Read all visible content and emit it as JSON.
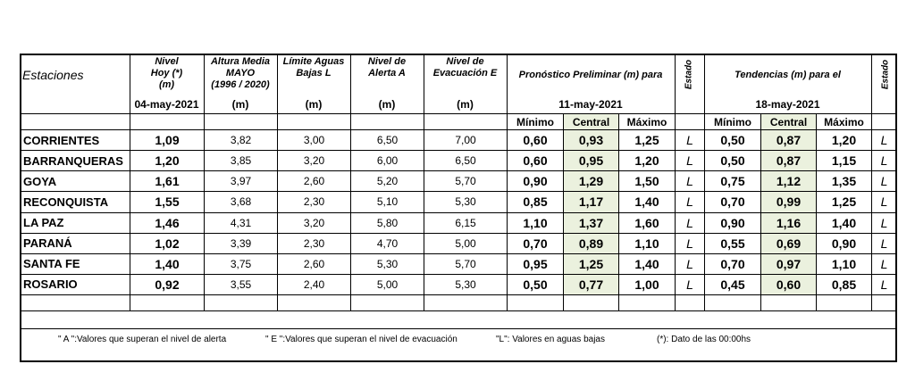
{
  "header": {
    "station": "Estaciones",
    "columns": [
      {
        "lines": [
          "Nivel",
          "Hoy (*)",
          "(m)"
        ],
        "sub": "04-may-2021"
      },
      {
        "lines": [
          "Altura Media",
          "MAYO",
          "(1996 / 2020)"
        ],
        "sub": "(m)"
      },
      {
        "lines": [
          "Límite Aguas",
          "Bajas L"
        ],
        "sub": "(m)"
      },
      {
        "lines": [
          "Nivel de",
          "Alerta A"
        ],
        "sub": "(m)"
      },
      {
        "lines": [
          "Nivel de",
          "Evacuación E"
        ],
        "sub": "(m)"
      }
    ],
    "forecast": {
      "title": "Pronóstico Preliminar (m) para",
      "date": "11-may-2021",
      "sub": [
        "Mínimo",
        "Central",
        "Máximo"
      ],
      "estado": "Estado"
    },
    "trend": {
      "title": "Tendencias (m) para el",
      "date": "18-may-2021",
      "sub": [
        "Mínimo",
        "Central",
        "Máximo"
      ],
      "estado": "Estado"
    }
  },
  "rows": [
    [
      "CORRIENTES",
      "1,09",
      "3,82",
      "3,00",
      "6,50",
      "7,00",
      "0,60",
      "0,93",
      "1,25",
      "L",
      "0,50",
      "0,87",
      "1,20",
      "L"
    ],
    [
      "BARRANQUERAS",
      "1,20",
      "3,85",
      "3,20",
      "6,00",
      "6,50",
      "0,60",
      "0,95",
      "1,20",
      "L",
      "0,50",
      "0,87",
      "1,15",
      "L"
    ],
    [
      "GOYA",
      "1,61",
      "3,97",
      "2,60",
      "5,20",
      "5,70",
      "0,90",
      "1,29",
      "1,50",
      "L",
      "0,75",
      "1,12",
      "1,35",
      "L"
    ],
    [
      "RECONQUISTA",
      "1,55",
      "3,68",
      "2,30",
      "5,10",
      "5,30",
      "0,85",
      "1,17",
      "1,40",
      "L",
      "0,70",
      "0,99",
      "1,25",
      "L"
    ],
    [
      "LA PAZ",
      "1,46",
      "4,31",
      "3,20",
      "5,80",
      "6,15",
      "1,10",
      "1,37",
      "1,60",
      "L",
      "0,90",
      "1,16",
      "1,40",
      "L"
    ],
    [
      "PARANÁ",
      "1,02",
      "3,39",
      "2,30",
      "4,70",
      "5,00",
      "0,70",
      "0,89",
      "1,10",
      "L",
      "0,55",
      "0,69",
      "0,90",
      "L"
    ],
    [
      "SANTA FE",
      "1,40",
      "3,75",
      "2,60",
      "5,30",
      "5,70",
      "0,95",
      "1,25",
      "1,40",
      "L",
      "0,70",
      "0,97",
      "1,10",
      "L"
    ],
    [
      "ROSARIO",
      "0,92",
      "3,55",
      "2,40",
      "5,00",
      "5,30",
      "0,50",
      "0,77",
      "1,00",
      "L",
      "0,45",
      "0,60",
      "0,85",
      "L"
    ]
  ],
  "footnotes": [
    "\" A \":Valores que superan el nivel de alerta",
    "\" E \":Valores que superan el nivel de evacuación",
    "\"L\": Valores en aguas bajas",
    "(*): Dato de las 00:00hs"
  ]
}
